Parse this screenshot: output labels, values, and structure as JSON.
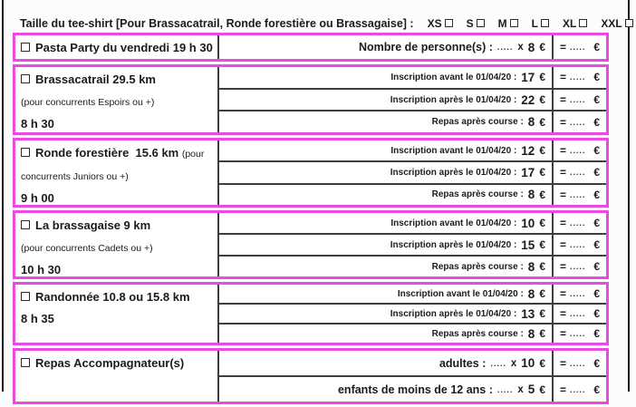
{
  "accent_pink": "#e94ae2",
  "currency": "€",
  "mult": "x",
  "blank": ".....",
  "equals": {
    "sign": "=",
    "blank": ".....",
    "currency": "€"
  },
  "header": {
    "label": "Taille du tee-shirt [Pour Brassacatrail, Ronde forestière ou Brassagaise] :",
    "sizes": [
      "XS",
      "S",
      "M",
      "L",
      "XL",
      "XXL"
    ]
  },
  "blocks": [
    {
      "left_lines": [
        [
          {
            "t": "Pasta Party du vendredi 19 h 30",
            "c": "title",
            "checkbox": true
          }
        ]
      ],
      "rows": [
        {
          "label": "Nombre de personne(s) :",
          "qty": true,
          "price": "8"
        }
      ]
    },
    {
      "left_lines": [
        [
          {
            "t": "Brassacatrail 29.5 km",
            "c": "title",
            "checkbox": true
          }
        ],
        [
          {
            "t": "(pour concurrents Espoirs ou +)",
            "c": "small"
          }
        ],
        [
          {
            "t": "8 h 30",
            "c": "time"
          }
        ]
      ],
      "rows": [
        {
          "label": "Inscription avant le 01/04/20 :",
          "price": "17"
        },
        {
          "label": "Inscription après le 01/04/20 :",
          "price": "22"
        },
        {
          "label": "Repas après course :",
          "price": "8"
        }
      ]
    },
    {
      "left_lines": [
        [
          {
            "t": "Ronde forestière  15.6 km ",
            "c": "title",
            "checkbox": true
          },
          {
            "t": "(pour",
            "c": "small"
          }
        ],
        [
          {
            "t": "concurrents Juniors ou +)",
            "c": "small"
          }
        ],
        [
          {
            "t": "9 h 00",
            "c": "time"
          }
        ]
      ],
      "rows": [
        {
          "label": "Inscription avant le 01/04/20 :",
          "price": "12"
        },
        {
          "label": "Inscription après le 01/04/20 :",
          "price": "17"
        },
        {
          "label": "Repas après course :",
          "price": "8"
        }
      ]
    },
    {
      "left_lines": [
        [
          {
            "t": "La brassagaise 9 km",
            "c": "title",
            "checkbox": true
          }
        ],
        [
          {
            "t": "(pour concurrents Cadets ou +)",
            "c": "small"
          }
        ],
        [
          {
            "t": "10 h 30",
            "c": "time"
          }
        ]
      ],
      "rows": [
        {
          "label": "Inscription avant le 01/04/20 :",
          "price": "10"
        },
        {
          "label": "Inscription après le 01/04/20 :",
          "price": "15"
        },
        {
          "label": "Repas après course :",
          "price": "8"
        }
      ]
    },
    {
      "left_lines": [
        [
          {
            "t": "Randonnée 10.8 ou 15.8 km",
            "c": "title",
            "checkbox": true
          }
        ],
        [
          {
            "t": "8 h 35",
            "c": "time"
          }
        ]
      ],
      "rows": [
        {
          "label": "Inscription avant le 01/04/20 :",
          "price": "8"
        },
        {
          "label": "Inscription après le 01/04/20 :",
          "price": "13"
        },
        {
          "label": "Repas après course :",
          "price": "8"
        }
      ]
    },
    {
      "left_lines": [
        [
          {
            "t": "Repas Accompagnateur(s)",
            "c": "title",
            "checkbox": true
          }
        ]
      ],
      "rows": [
        {
          "label": "adultes :",
          "qty": true,
          "price": "10"
        },
        {
          "label": "enfants de moins de 12 ans :",
          "qty": true,
          "price": "5"
        }
      ]
    }
  ]
}
